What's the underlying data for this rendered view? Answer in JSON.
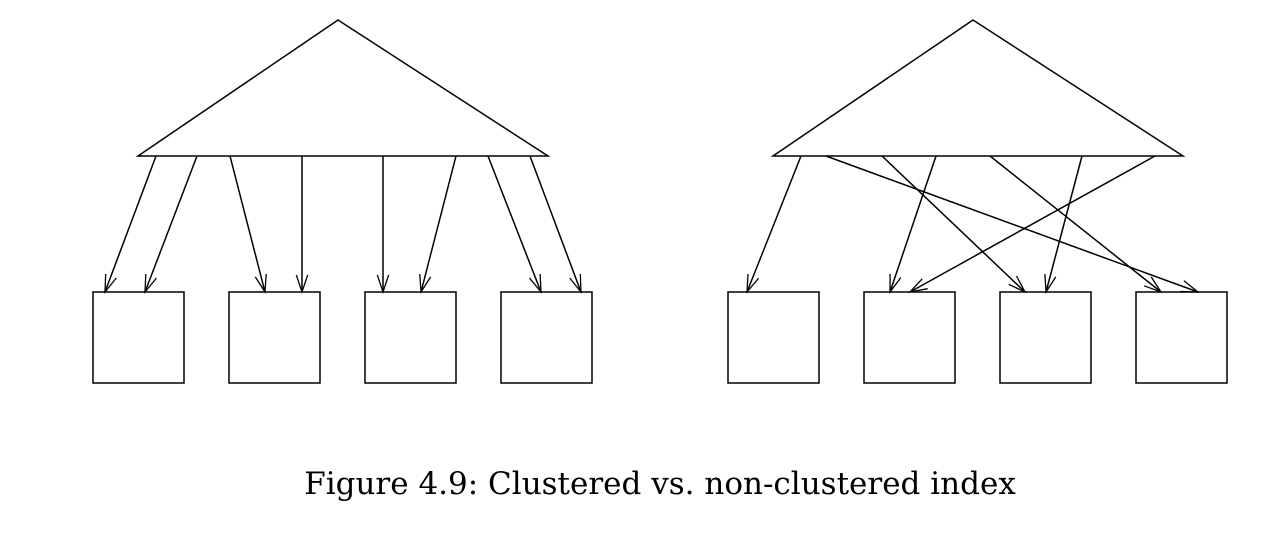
{
  "caption": "Figure 4.9: Clustered vs. non-clustered index",
  "diagrams": [
    {
      "id": "clustered",
      "pages": 4,
      "pointers": [
        [
          0,
          0
        ],
        [
          1,
          0
        ],
        [
          2,
          1
        ],
        [
          3,
          1
        ],
        [
          4,
          2
        ],
        [
          5,
          2
        ],
        [
          6,
          3
        ],
        [
          7,
          3
        ]
      ]
    },
    {
      "id": "non-clustered",
      "pages": 4,
      "pointers": [
        [
          0,
          0
        ],
        [
          1,
          3
        ],
        [
          2,
          2
        ],
        [
          3,
          1
        ],
        [
          4,
          3
        ],
        [
          5,
          2
        ],
        [
          6,
          1
        ]
      ]
    }
  ]
}
